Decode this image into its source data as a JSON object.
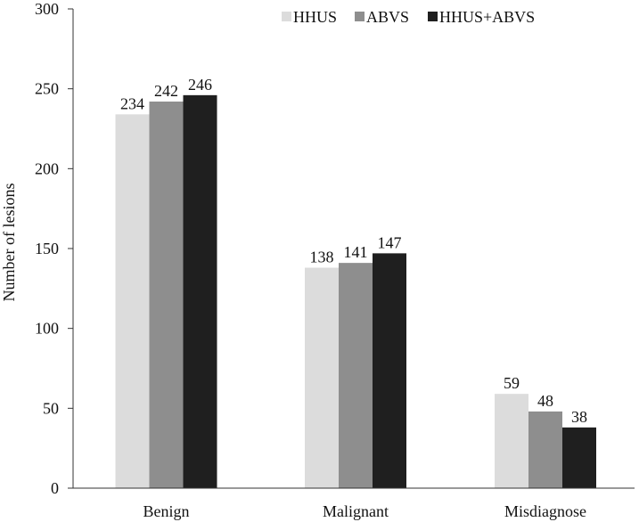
{
  "chart_data": {
    "type": "bar",
    "title": "",
    "xlabel": "",
    "ylabel": "Number of lesions",
    "ylim": [
      0,
      300
    ],
    "yticks": [
      0,
      50,
      100,
      150,
      200,
      250,
      300
    ],
    "grid": false,
    "legend_position": "top-right",
    "categories": [
      "Benign",
      "Malignant",
      "Misdiagnose"
    ],
    "series": [
      {
        "name": "HHUS",
        "color": "#dcdcdc",
        "values": [
          234,
          138,
          59
        ]
      },
      {
        "name": "ABVS",
        "color": "#8e8e8e",
        "values": [
          242,
          141,
          48
        ]
      },
      {
        "name": "HHUS+ABVS",
        "color": "#1f1f1f",
        "values": [
          246,
          147,
          38
        ]
      }
    ]
  }
}
